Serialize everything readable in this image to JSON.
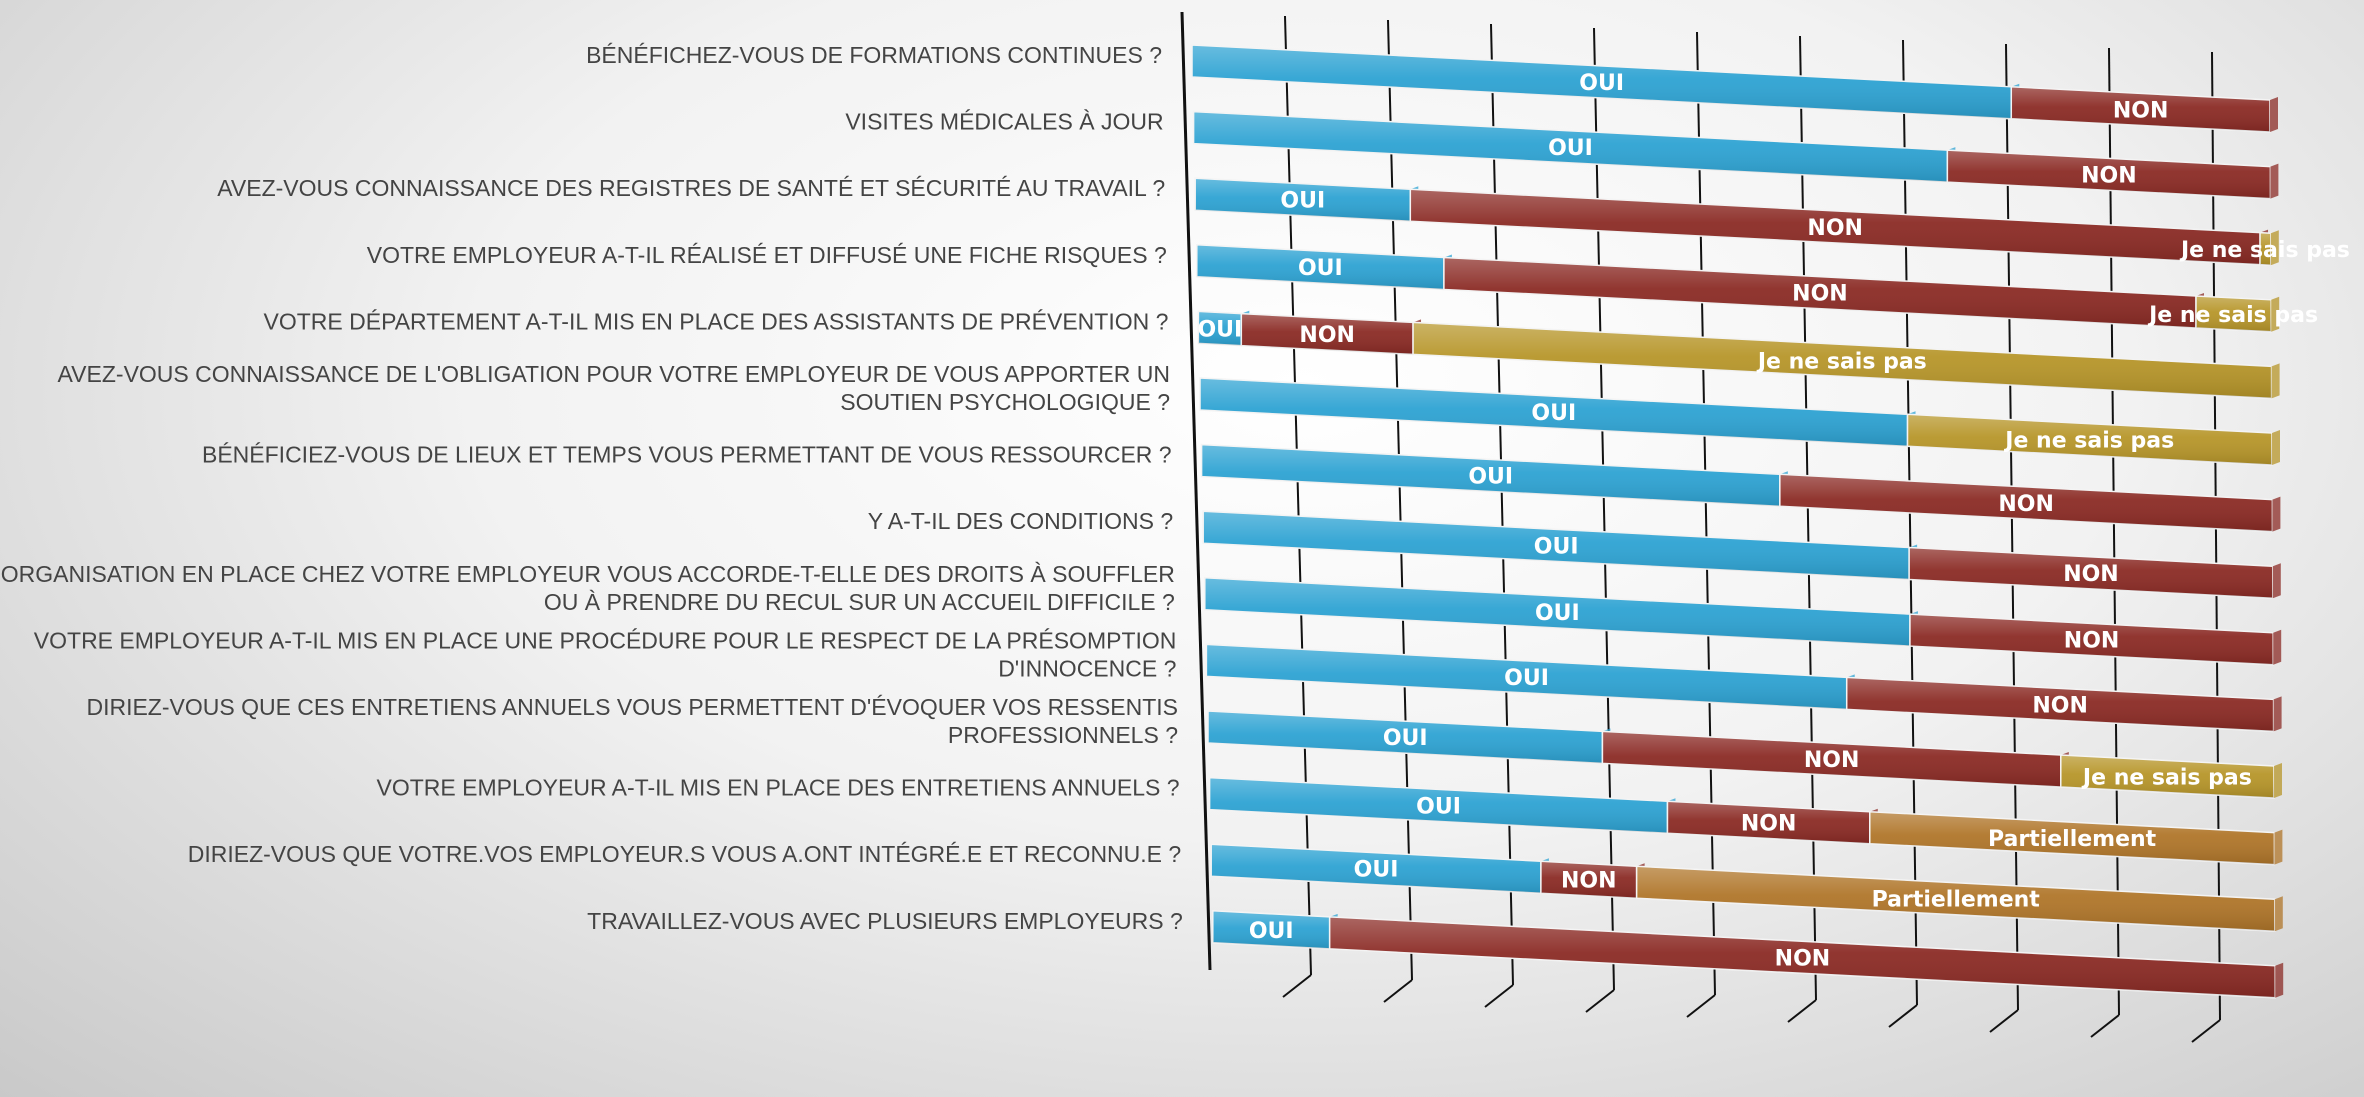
{
  "chart_data": {
    "type": "bar",
    "orientation": "horizontal-stacked-percent",
    "title": "",
    "xlabel": "",
    "ylabel": "",
    "xlim": [
      0,
      100
    ],
    "grid": true,
    "legend": "none",
    "segment_colors": {
      "OUI": "#2ea3d3",
      "NON": "#8b2b25",
      "Je ne sais pas": "#b7962a",
      "Partiellement": "#b0762a"
    },
    "categories": [
      "BÉNÉFICHEZ-VOUS DE FORMATIONS CONTINUES ?",
      "VISITES MÉDICALES À JOUR",
      "AVEZ-VOUS CONNAISSANCE DES REGISTRES DE SANTÉ ET SÉCURITÉ AU TRAVAIL ?",
      "VOTRE EMPLOYEUR A-T-IL RÉALISÉ ET DIFFUSÉ UNE FICHE RISQUES ?",
      "VOTRE DÉPARTEMENT A-T-IL MIS EN PLACE DES ASSISTANTS DE PRÉVENTION ?",
      "AVEZ-VOUS CONNAISSANCE DE L'OBLIGATION POUR VOTRE EMPLOYEUR  DE VOUS APPORTER UN SOUTIEN PSYCHOLOGIQUE ?",
      "BÉNÉFICIEZ-VOUS DE LIEUX ET TEMPS VOUS PERMETTANT DE VOUS RESSOURCER ?",
      "Y A-T-IL DES CONDITIONS ?",
      "L'ORGANISATION EN PLACE CHEZ VOTRE EMPLOYEUR VOUS ACCORDE-T-ELLE DES DROITS À SOUFFLER OU À PRENDRE DU RECUL SUR UN ACCUEIL DIFFICILE ?",
      "VOTRE EMPLOYEUR A-T-IL MIS EN PLACE UNE PROCÉDURE POUR LE RESPECT DE LA PRÉSOMPTION D'INNOCENCE ?",
      "DIRIEZ-VOUS QUE CES ENTRETIENS ANNUELS VOUS PERMETTENT D'ÉVOQUER VOS RESSENTIS PROFESSIONNELS ?",
      "VOTRE EMPLOYEUR A-T-IL MIS EN PLACE DES ENTRETIENS ANNUELS ?",
      "DIRIEZ-VOUS QUE VOTRE.VOS EMPLOYEUR.S VOUS A.ONT INTÉGRÉ.E ET RECONNU.E ?",
      "TRAVAILLEZ-VOUS AVEC PLUSIEURS EMPLOYEURS ?"
    ],
    "category_lines": [
      [
        "BÉNÉFICHEZ-VOUS DE FORMATIONS CONTINUES ?"
      ],
      [
        "VISITES MÉDICALES À JOUR"
      ],
      [
        "AVEZ-VOUS CONNAISSANCE DES REGISTRES DE SANTÉ ET SÉCURITÉ AU TRAVAIL ?"
      ],
      [
        "VOTRE EMPLOYEUR A-T-IL RÉALISÉ ET DIFFUSÉ UNE FICHE RISQUES ?"
      ],
      [
        "VOTRE DÉPARTEMENT A-T-IL MIS EN PLACE DES ASSISTANTS DE PRÉVENTION ?"
      ],
      [
        "AVEZ-VOUS CONNAISSANCE DE L'OBLIGATION POUR VOTRE EMPLOYEUR  DE VOUS APPORTER UN",
        "SOUTIEN PSYCHOLOGIQUE ?"
      ],
      [
        "BÉNÉFICIEZ-VOUS DE LIEUX ET TEMPS VOUS PERMETTANT DE VOUS RESSOURCER ?"
      ],
      [
        "Y A-T-IL DES CONDITIONS ?"
      ],
      [
        "L'ORGANISATION EN PLACE CHEZ VOTRE EMPLOYEUR VOUS ACCORDE-T-ELLE DES DROITS À SOUFFLER",
        "OU À PRENDRE DU RECUL SUR UN ACCUEIL DIFFICILE ?"
      ],
      [
        "VOTRE EMPLOYEUR A-T-IL MIS EN PLACE UNE PROCÉDURE POUR LE RESPECT DE LA PRÉSOMPTION",
        "D'INNOCENCE ?"
      ],
      [
        "DIRIEZ-VOUS QUE CES ENTRETIENS ANNUELS VOUS PERMETTENT D'ÉVOQUER VOS RESSENTIS",
        "PROFESSIONNELS ?"
      ],
      [
        "VOTRE EMPLOYEUR A-T-IL MIS EN PLACE DES ENTRETIENS ANNUELS ?"
      ],
      [
        "DIRIEZ-VOUS QUE VOTRE.VOS EMPLOYEUR.S VOUS A.ONT INTÉGRÉ.E ET RECONNU.E ?"
      ],
      [
        "TRAVAILLEZ-VOUS AVEC PLUSIEURS EMPLOYEURS ?"
      ]
    ],
    "series": [
      {
        "name": "OUI",
        "values": [
          76,
          70,
          20,
          23,
          4,
          66,
          54,
          66,
          66,
          60,
          37,
          43,
          31,
          11
        ]
      },
      {
        "name": "NON",
        "values": [
          24,
          30,
          79,
          70,
          16,
          0,
          46,
          34,
          34,
          40,
          43,
          19,
          9,
          89
        ]
      },
      {
        "name": "Je ne sais pas",
        "values": [
          0,
          0,
          1,
          7,
          80,
          34,
          0,
          0,
          0,
          0,
          20,
          0,
          0,
          0
        ]
      },
      {
        "name": "Partiellement",
        "values": [
          0,
          0,
          0,
          0,
          0,
          0,
          0,
          0,
          0,
          0,
          0,
          38,
          60,
          0
        ]
      }
    ]
  }
}
